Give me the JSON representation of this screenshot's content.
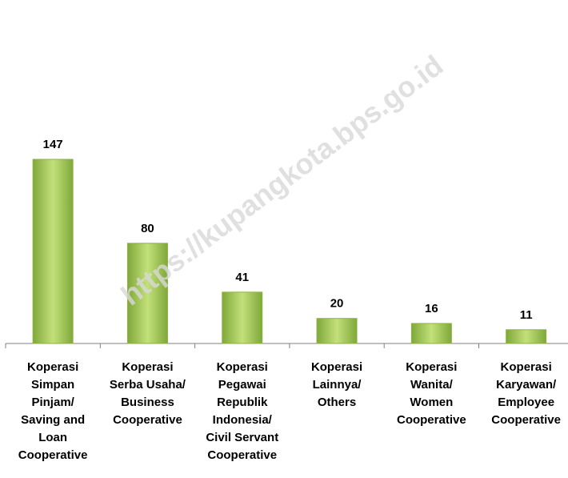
{
  "chart_data": {
    "type": "bar",
    "categories": [
      "Koperasi\nSimpan\nPinjam/\nSaving and\nLoan\nCooperative",
      "Koperasi\nSerba Usaha/\nBusiness\nCooperative",
      "Koperasi\nPegawai\nRepublik\nIndonesia/\nCivil Servant\nCooperative",
      "Koperasi\nLainnya/\nOthers",
      "Koperasi\nWanita/\nWomen\nCooperative",
      "Koperasi\nKaryawan/\nEmployee\nCooperative"
    ],
    "values": [
      147,
      80,
      41,
      20,
      16,
      11
    ],
    "color": "#9bc24a",
    "watermark": "https://kupangkota.bps.go.id"
  }
}
